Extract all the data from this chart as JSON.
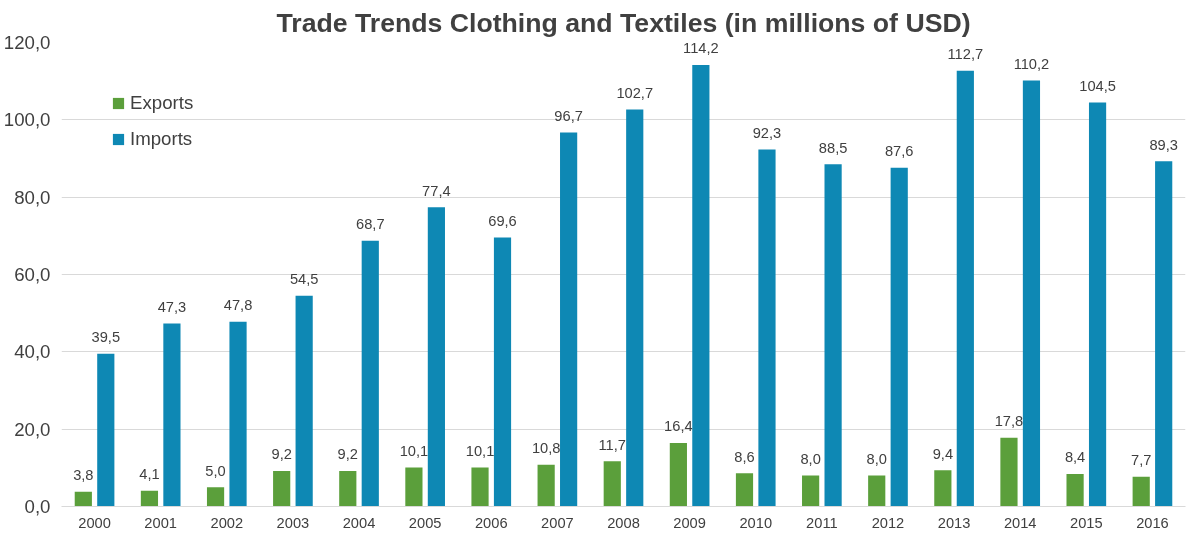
{
  "chart_data": {
    "type": "bar",
    "title": "Trade Trends Clothing and Textiles (in millions of USD)",
    "categories": [
      "2000",
      "2001",
      "2002",
      "2003",
      "2004",
      "2005",
      "2006",
      "2007",
      "2008",
      "2009",
      "2010",
      "2011",
      "2012",
      "2013",
      "2014",
      "2015",
      "2016"
    ],
    "series": [
      {
        "name": "Exports",
        "color": "#5b9f3b",
        "values": [
          3.8,
          4.1,
          5.0,
          9.2,
          9.2,
          10.1,
          10.1,
          10.8,
          11.7,
          16.4,
          8.6,
          8.0,
          8.0,
          9.4,
          17.8,
          8.4,
          7.7
        ],
        "value_labels": [
          "3,8",
          "4,1",
          "5,0",
          "9,2",
          "9,2",
          "10,1",
          "10,1",
          "10,8",
          "11,7",
          "16,4",
          "8,6",
          "8,0",
          "8,0",
          "9,4",
          "17,8",
          "8,4",
          "7,7"
        ]
      },
      {
        "name": "Imports",
        "color": "#0e88b4",
        "values": [
          39.5,
          47.3,
          47.8,
          54.5,
          68.7,
          77.4,
          69.6,
          96.7,
          102.7,
          114.2,
          92.3,
          88.5,
          87.6,
          112.7,
          110.2,
          104.5,
          89.3
        ],
        "value_labels": [
          "39,5",
          "47,3",
          "47,8",
          "54,5",
          "68,7",
          "77,4",
          "69,6",
          "96,7",
          "102,7",
          "114,2",
          "92,3",
          "88,5",
          "87,6",
          "112,7",
          "110,2",
          "104,5",
          "89,3"
        ]
      }
    ],
    "ylim": [
      0,
      120
    ],
    "yticks": [
      {
        "value": 0,
        "label": "0,0"
      },
      {
        "value": 20,
        "label": "20,0"
      },
      {
        "value": 40,
        "label": "40,0"
      },
      {
        "value": 60,
        "label": "60,0"
      },
      {
        "value": 80,
        "label": "80,0"
      },
      {
        "value": 100,
        "label": "100,0"
      },
      {
        "value": 120,
        "label": "120,0"
      }
    ],
    "grid": "y",
    "legend": "top left"
  }
}
